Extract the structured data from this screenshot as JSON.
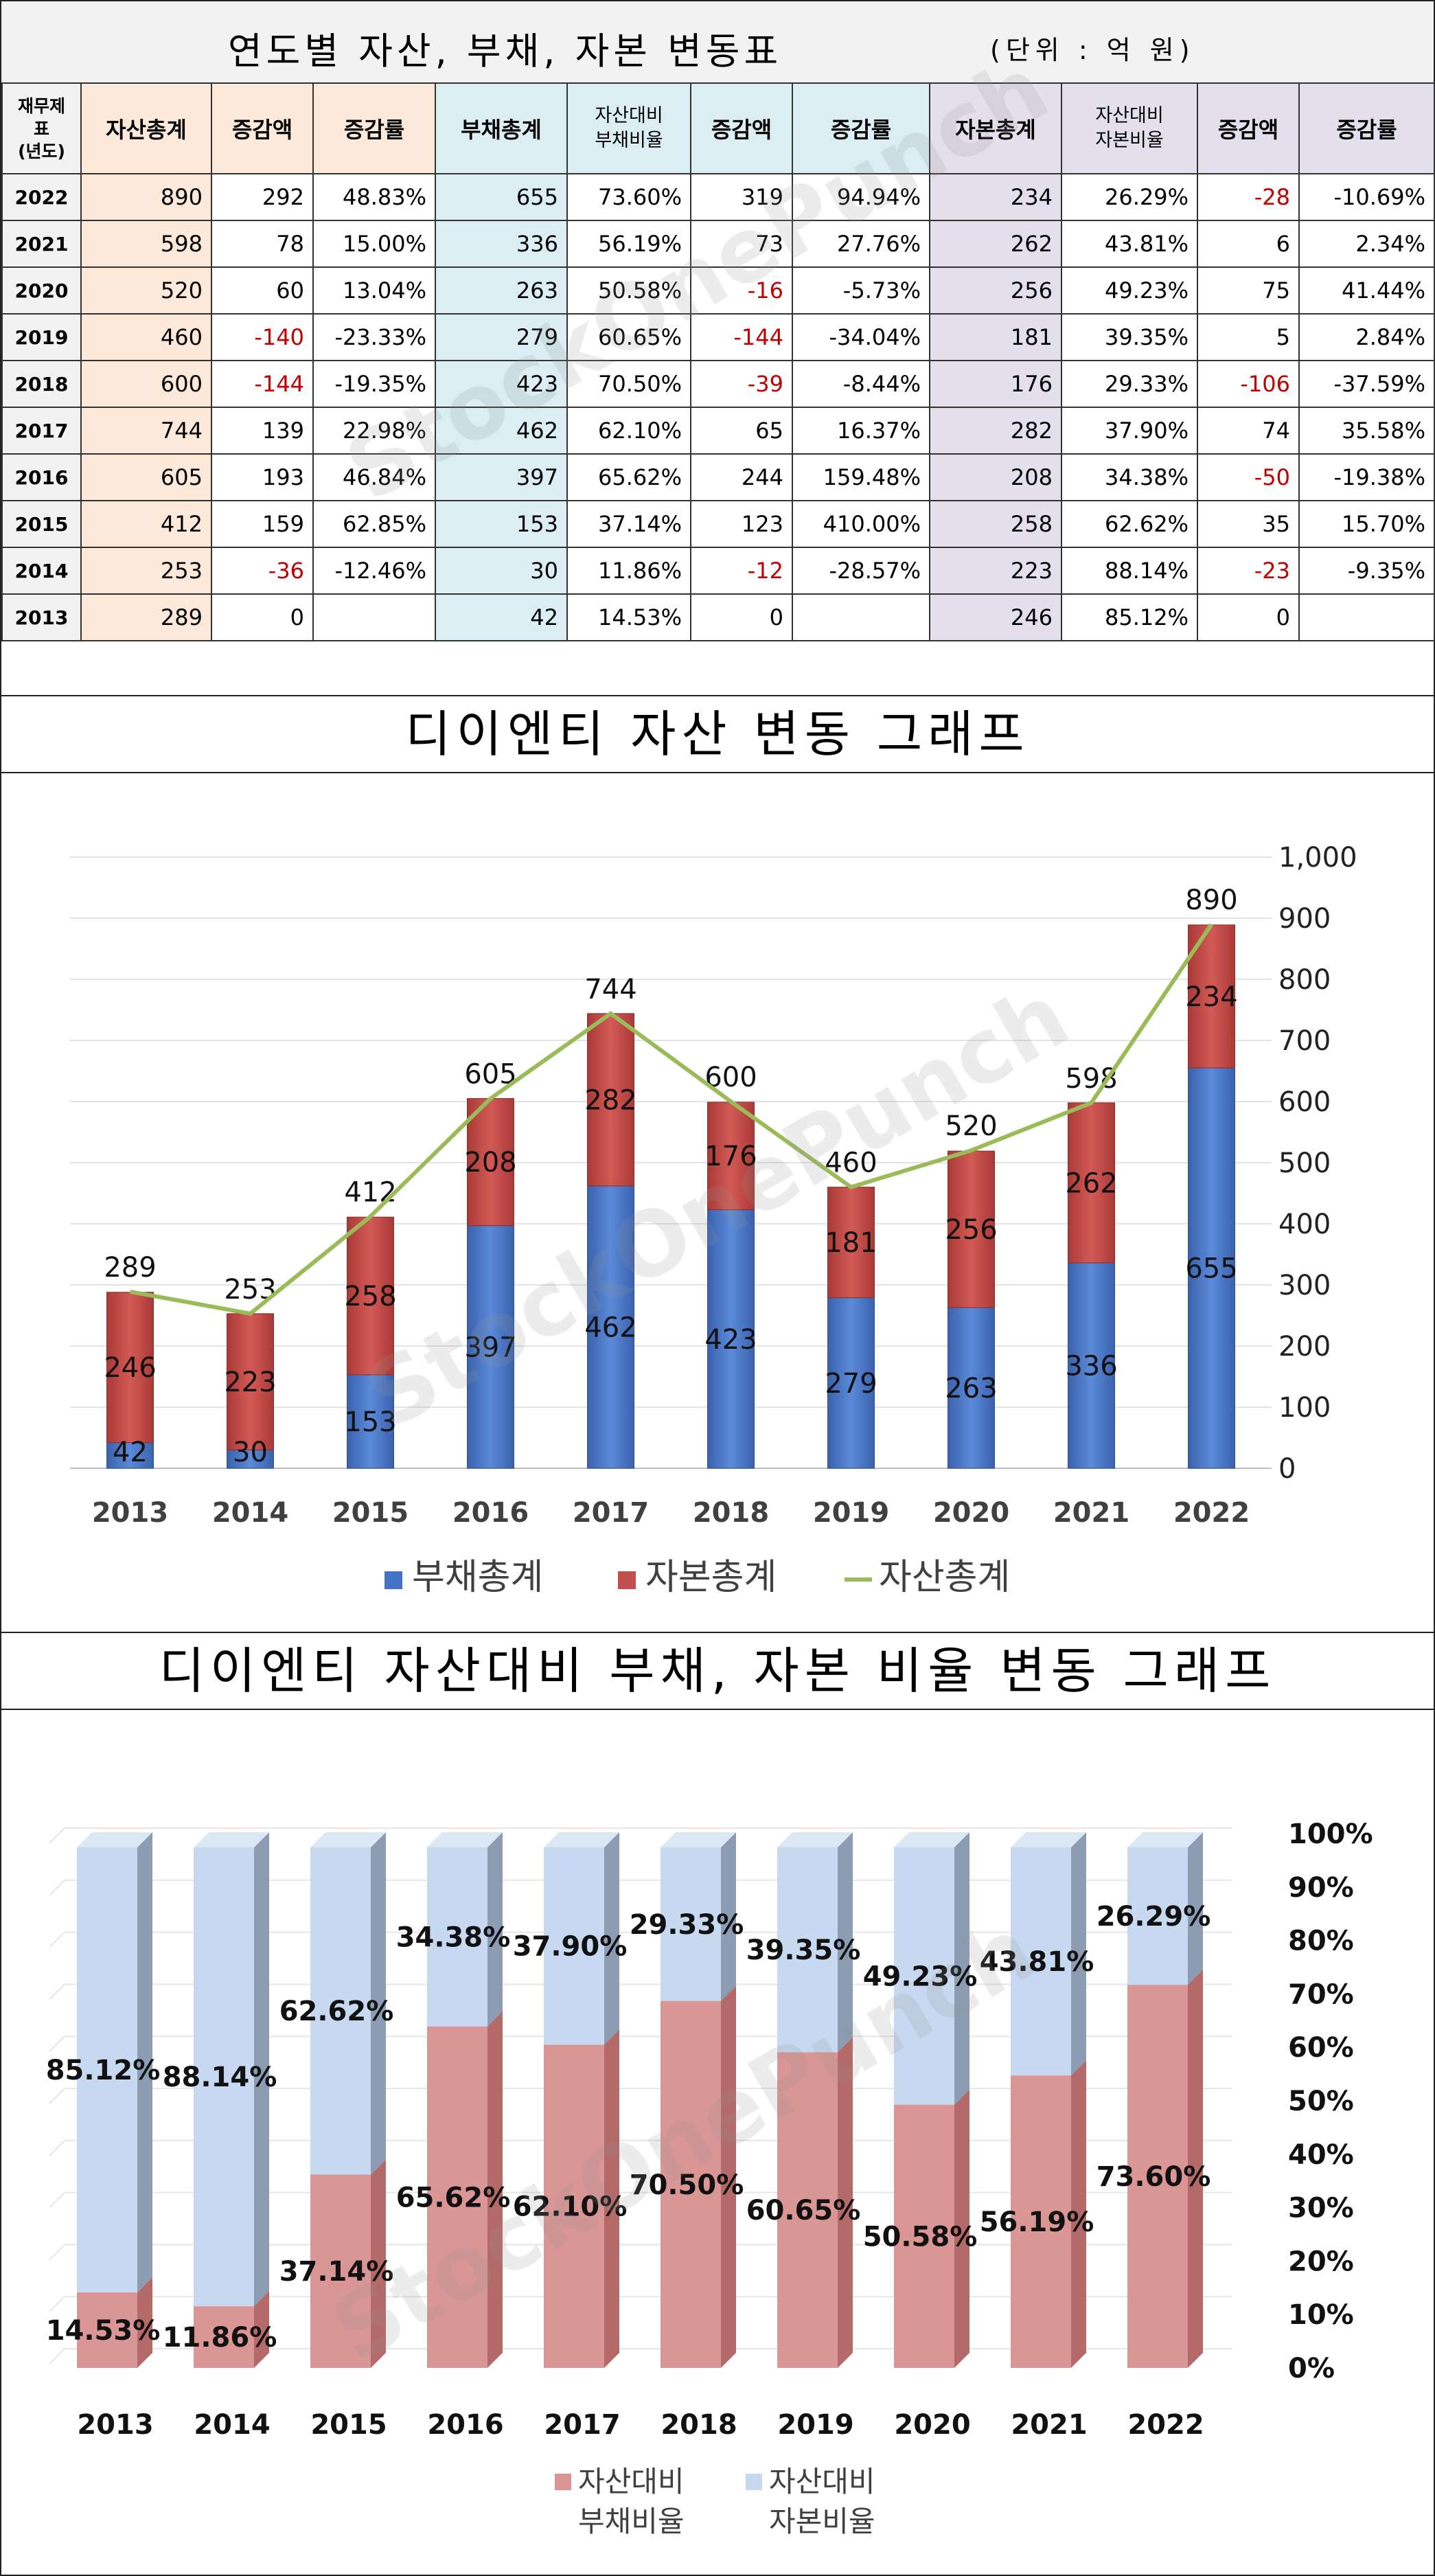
{
  "table": {
    "title": "연도별 자산, 부채, 자본 변동표",
    "unit": "(단위 : 억 원)",
    "headers": {
      "year": "재무제표\n(년도)",
      "assets_total": "자산총계",
      "change_amount": "증감액",
      "change_rate": "증감률",
      "debt_total": "부채총계",
      "debt_ratio": "자산대비\n부채비율",
      "equity_total": "자본총계",
      "equity_ratio": "자산대비\n자본비율"
    },
    "rows": [
      {
        "year": "2022",
        "assets": "890",
        "a_chg": "292",
        "a_rate": "48.83%",
        "debt": "655",
        "debt_ratio": "73.60%",
        "d_chg": "319",
        "d_rate": "94.94%",
        "equity": "234",
        "eq_ratio": "26.29%",
        "e_chg": "-28",
        "e_rate": "-10.69%"
      },
      {
        "year": "2021",
        "assets": "598",
        "a_chg": "78",
        "a_rate": "15.00%",
        "debt": "336",
        "debt_ratio": "56.19%",
        "d_chg": "73",
        "d_rate": "27.76%",
        "equity": "262",
        "eq_ratio": "43.81%",
        "e_chg": "6",
        "e_rate": "2.34%"
      },
      {
        "year": "2020",
        "assets": "520",
        "a_chg": "60",
        "a_rate": "13.04%",
        "debt": "263",
        "debt_ratio": "50.58%",
        "d_chg": "-16",
        "d_rate": "-5.73%",
        "equity": "256",
        "eq_ratio": "49.23%",
        "e_chg": "75",
        "e_rate": "41.44%"
      },
      {
        "year": "2019",
        "assets": "460",
        "a_chg": "-140",
        "a_rate": "-23.33%",
        "debt": "279",
        "debt_ratio": "60.65%",
        "d_chg": "-144",
        "d_rate": "-34.04%",
        "equity": "181",
        "eq_ratio": "39.35%",
        "e_chg": "5",
        "e_rate": "2.84%"
      },
      {
        "year": "2018",
        "assets": "600",
        "a_chg": "-144",
        "a_rate": "-19.35%",
        "debt": "423",
        "debt_ratio": "70.50%",
        "d_chg": "-39",
        "d_rate": "-8.44%",
        "equity": "176",
        "eq_ratio": "29.33%",
        "e_chg": "-106",
        "e_rate": "-37.59%"
      },
      {
        "year": "2017",
        "assets": "744",
        "a_chg": "139",
        "a_rate": "22.98%",
        "debt": "462",
        "debt_ratio": "62.10%",
        "d_chg": "65",
        "d_rate": "16.37%",
        "equity": "282",
        "eq_ratio": "37.90%",
        "e_chg": "74",
        "e_rate": "35.58%"
      },
      {
        "year": "2016",
        "assets": "605",
        "a_chg": "193",
        "a_rate": "46.84%",
        "debt": "397",
        "debt_ratio": "65.62%",
        "d_chg": "244",
        "d_rate": "159.48%",
        "equity": "208",
        "eq_ratio": "34.38%",
        "e_chg": "-50",
        "e_rate": "-19.38%"
      },
      {
        "year": "2015",
        "assets": "412",
        "a_chg": "159",
        "a_rate": "62.85%",
        "debt": "153",
        "debt_ratio": "37.14%",
        "d_chg": "123",
        "d_rate": "410.00%",
        "equity": "258",
        "eq_ratio": "62.62%",
        "e_chg": "35",
        "e_rate": "15.70%"
      },
      {
        "year": "2014",
        "assets": "253",
        "a_chg": "-36",
        "a_rate": "-12.46%",
        "debt": "30",
        "debt_ratio": "11.86%",
        "d_chg": "-12",
        "d_rate": "-28.57%",
        "equity": "223",
        "eq_ratio": "88.14%",
        "e_chg": "-23",
        "e_rate": "-9.35%"
      },
      {
        "year": "2013",
        "assets": "289",
        "a_chg": "0",
        "a_rate": "",
        "debt": "42",
        "debt_ratio": "14.53%",
        "d_chg": "0",
        "d_rate": "",
        "equity": "246",
        "eq_ratio": "85.12%",
        "e_chg": "0",
        "e_rate": ""
      }
    ]
  },
  "watermark": "StockOnePunch",
  "colors": {
    "debt": "#4472c4",
    "equity": "#c0504d",
    "assets_line": "#9bbb59",
    "debt_ratio": "#d99694",
    "equity_ratio": "#c6d9f0"
  },
  "chart_data": [
    {
      "type": "bar",
      "stacked": true,
      "title": "디이엔티 자산 변동 그래프",
      "categories": [
        "2013",
        "2014",
        "2015",
        "2016",
        "2017",
        "2018",
        "2019",
        "2020",
        "2021",
        "2022"
      ],
      "series": [
        {
          "name": "부채총계",
          "kind": "bar",
          "values": [
            42,
            30,
            153,
            397,
            462,
            423,
            279,
            263,
            336,
            655
          ]
        },
        {
          "name": "자본총계",
          "kind": "bar",
          "values": [
            246,
            223,
            258,
            208,
            282,
            176,
            181,
            256,
            262,
            234
          ]
        },
        {
          "name": "자산총계",
          "kind": "line",
          "values": [
            289,
            253,
            412,
            605,
            744,
            600,
            460,
            520,
            598,
            890
          ]
        }
      ],
      "y_ticks": [
        "0",
        "100",
        "200",
        "300",
        "400",
        "500",
        "600",
        "700",
        "800",
        "900",
        "1,000"
      ],
      "ylim": [
        0,
        1000
      ],
      "axis_side": "right",
      "legend_position": "bottom"
    },
    {
      "type": "bar",
      "stacked": true,
      "percent": true,
      "title": "디이엔티 자산대비 부채, 자본 비율 변동 그래프",
      "categories": [
        "2013",
        "2014",
        "2015",
        "2016",
        "2017",
        "2018",
        "2019",
        "2020",
        "2021",
        "2022"
      ],
      "series": [
        {
          "name": "자산대비\n부채비율",
          "values": [
            14.53,
            11.86,
            37.14,
            65.62,
            62.1,
            70.5,
            60.65,
            50.58,
            56.19,
            73.6
          ],
          "labels": [
            "14.53%",
            "11.86%",
            "37.14%",
            "65.62%",
            "62.10%",
            "70.50%",
            "60.65%",
            "50.58%",
            "56.19%",
            "73.60%"
          ]
        },
        {
          "name": "자산대비\n자본비율",
          "values": [
            85.12,
            88.14,
            62.62,
            34.38,
            37.9,
            29.33,
            39.35,
            49.23,
            43.81,
            26.29
          ],
          "labels": [
            "85.12%",
            "88.14%",
            "62.62%",
            "34.38%",
            "37.90%",
            "29.33%",
            "39.35%",
            "49.23%",
            "43.81%",
            "26.29%"
          ]
        }
      ],
      "y_ticks": [
        "0%",
        "10%",
        "20%",
        "30%",
        "40%",
        "50%",
        "60%",
        "70%",
        "80%",
        "90%",
        "100%"
      ],
      "ylim": [
        0,
        100
      ],
      "axis_side": "right",
      "legend_position": "bottom"
    }
  ]
}
